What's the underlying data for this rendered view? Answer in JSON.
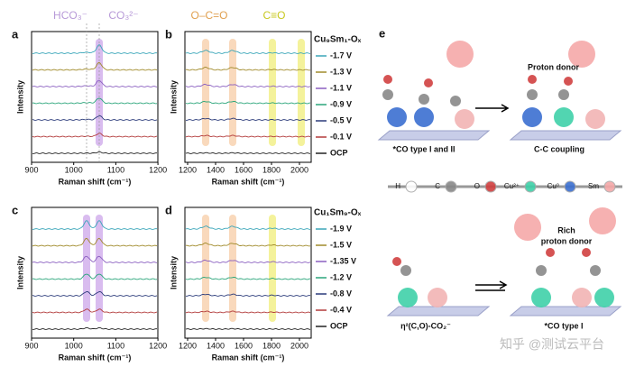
{
  "panels": [
    {
      "label": "a",
      "x_ticks": [
        "900",
        "1000",
        "1100",
        "1200"
      ],
      "x_title": "Raman shift (cm⁻¹)",
      "y_title": "Intensity",
      "annotations": [
        "HCO₃⁻",
        "CO₃²⁻"
      ]
    },
    {
      "label": "b",
      "x_ticks": [
        "1200",
        "1400",
        "1600",
        "1800",
        "2000"
      ],
      "x_title": "Raman shift (cm⁻¹)",
      "y_title": "Intensity",
      "annotations": [
        "O–C=O",
        "C≡O"
      ]
    },
    {
      "label": "c",
      "x_ticks": [
        "900",
        "1000",
        "1100",
        "1200"
      ],
      "x_title": "Raman shift (cm⁻¹)",
      "y_title": "Intensity",
      "annotations": []
    },
    {
      "label": "d",
      "x_ticks": [
        "1200",
        "1400",
        "1600",
        "1800",
        "2000"
      ],
      "x_title": "Raman shift (cm⁻¹)",
      "y_title": "Intensity",
      "annotations": []
    }
  ],
  "legends": [
    {
      "title": "Cu₉Sm₁-Oₓ",
      "items": [
        "-1.7 V",
        "-1.3 V",
        "-1.1 V",
        "-0.9 V",
        "-0.5 V",
        "-0.1 V",
        "OCP"
      ]
    },
    {
      "title": "Cu₁Sm₉-Oₓ",
      "items": [
        "-1.9 V",
        "-1.5 V",
        "-1.35 V",
        "-1.2 V",
        "-0.8 V",
        "-0.4 V",
        "OCP"
      ]
    }
  ],
  "panel_e": {
    "label": "e",
    "proton_donor": "Proton donor",
    "caption_1": "*CO type I and II",
    "caption_2": "C-C coupling",
    "atoms": [
      "H",
      "C",
      "O",
      "Cu²⁺",
      "Cu⁰",
      "Sm"
    ],
    "rich_1": "Rich",
    "rich_2": "proton donor",
    "caption_3": "η²(C,O)-CO₂⁻",
    "caption_4": "*CO type I"
  },
  "watermark": "知乎 @测试云平台"
}
